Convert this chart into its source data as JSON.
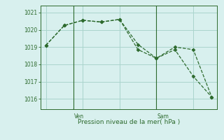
{
  "line1_x": [
    0,
    1,
    2,
    3,
    4,
    5,
    6,
    7,
    8,
    9
  ],
  "line1_y": [
    1019.1,
    1020.25,
    1020.55,
    1020.45,
    1020.6,
    1019.15,
    1018.35,
    1019.0,
    1018.85,
    1016.1
  ],
  "line2_x": [
    0,
    1,
    2,
    3,
    4,
    5,
    6,
    7,
    8,
    9
  ],
  "line2_y": [
    1019.1,
    1020.25,
    1020.55,
    1020.45,
    1020.6,
    1018.85,
    1018.35,
    1018.85,
    1017.3,
    1016.1
  ],
  "ven_x": 1.5,
  "sam_x": 6.0,
  "line_color": "#2d6a2d",
  "bg_color": "#d8f0ee",
  "grid_color": "#aad4cc",
  "ylabel_ticks": [
    1016,
    1017,
    1018,
    1019,
    1020,
    1021
  ],
  "xlabel": "Pression niveau de la mer( hPa )",
  "xlim": [
    -0.3,
    9.3
  ],
  "ylim": [
    1015.4,
    1021.4
  ]
}
